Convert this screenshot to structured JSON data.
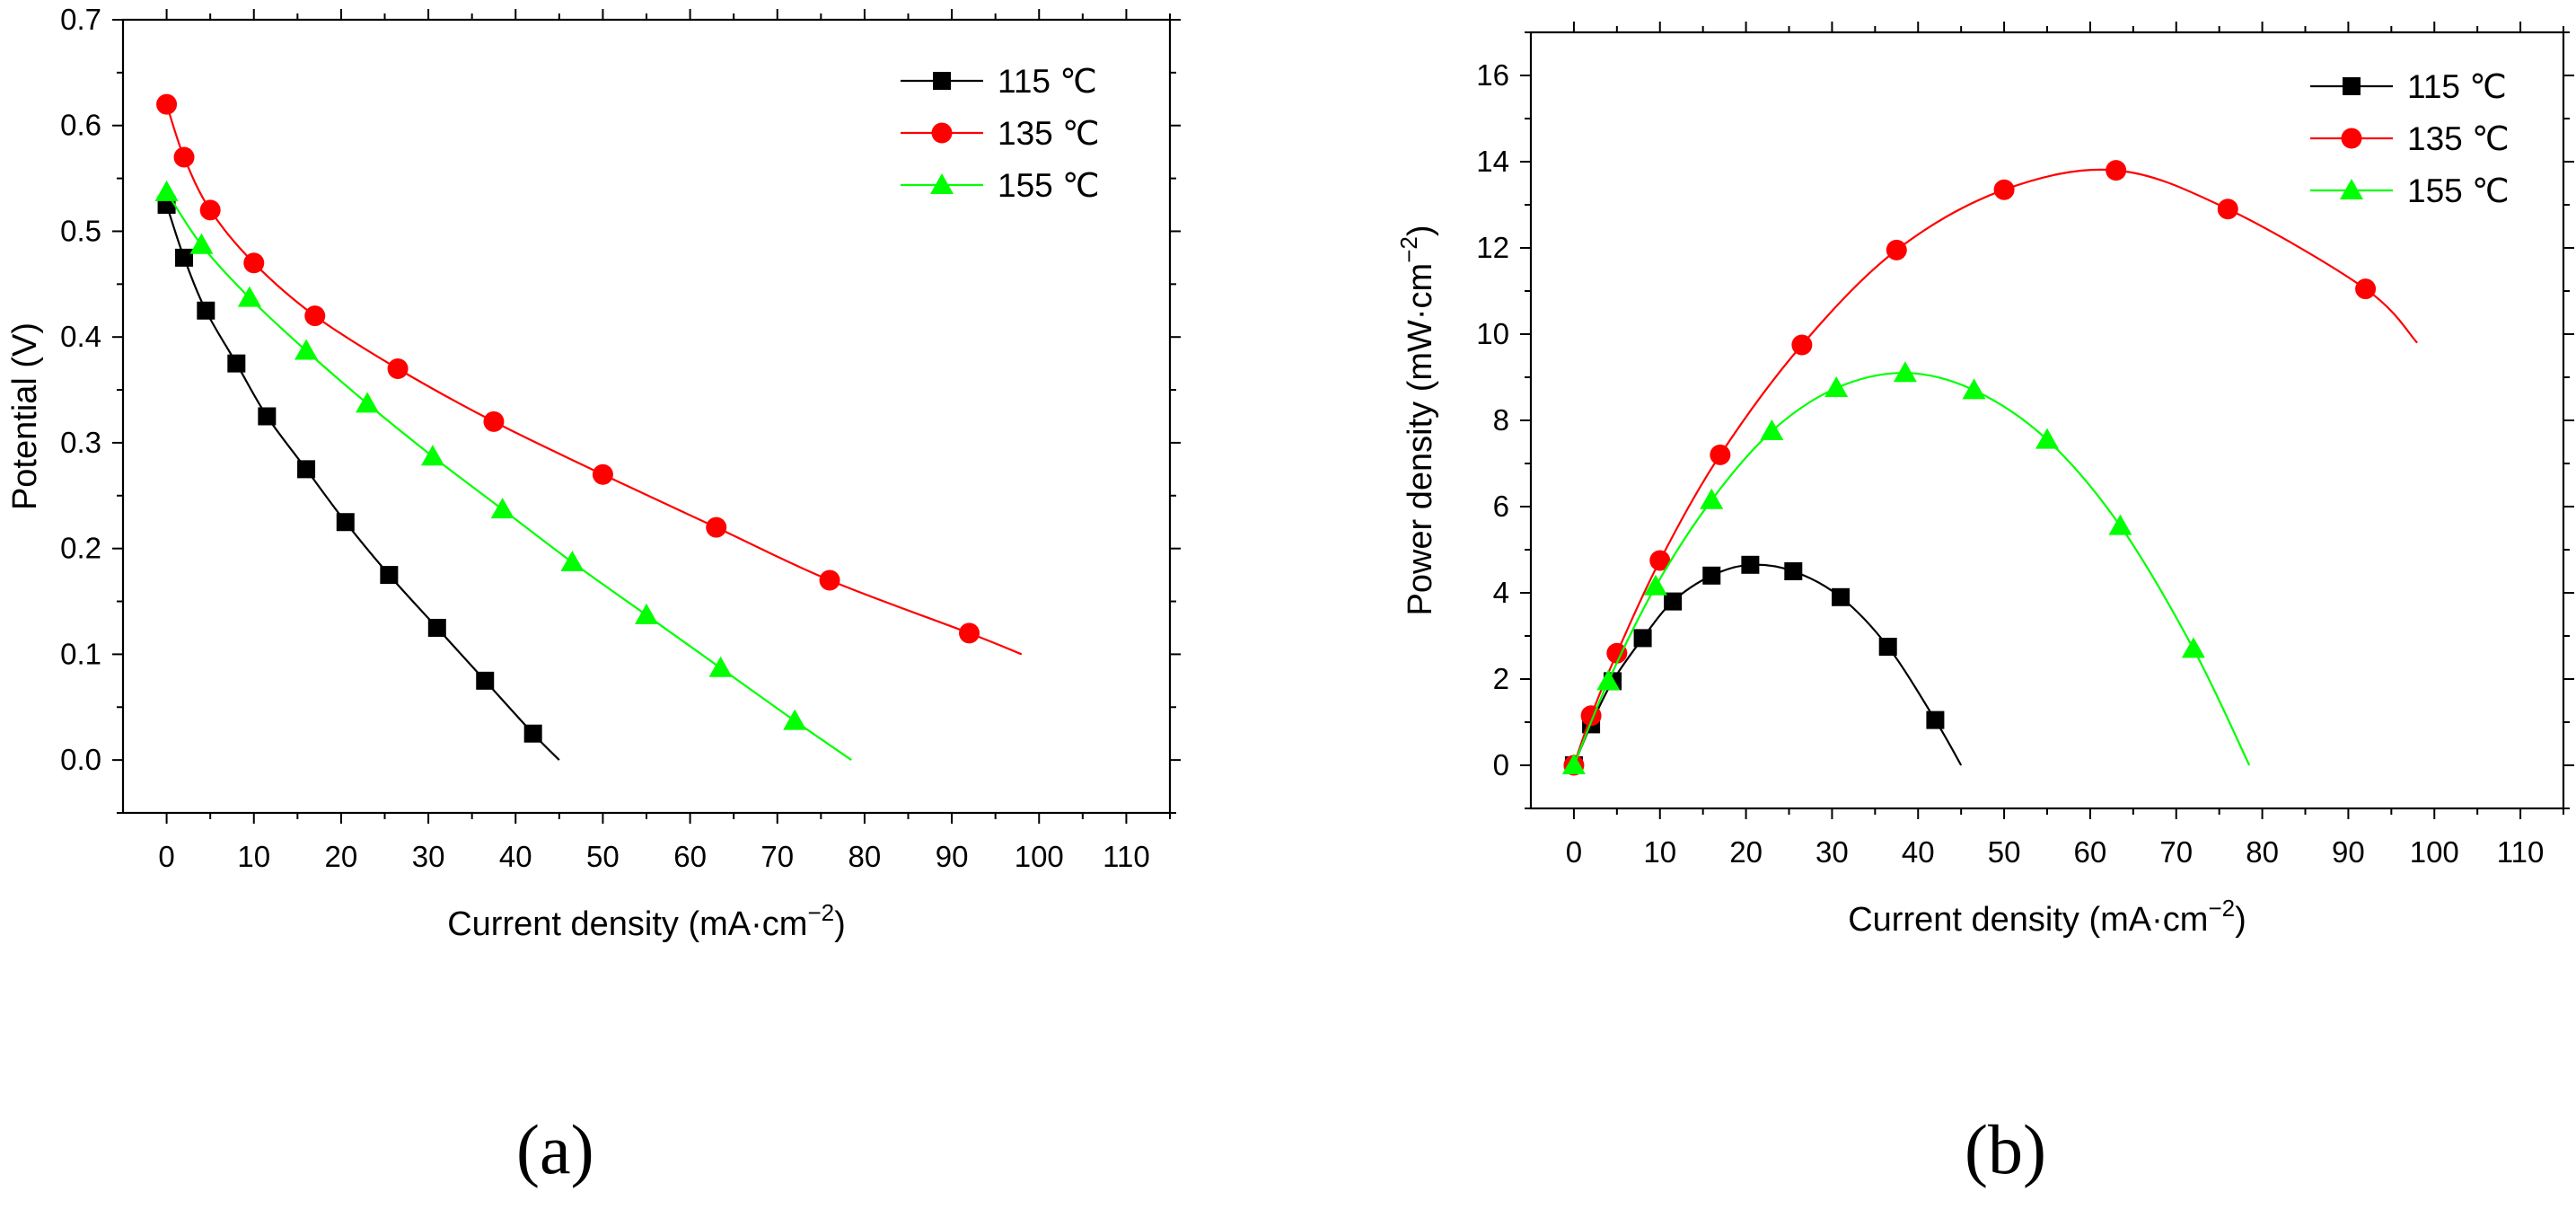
{
  "chart_data": [
    {
      "type": "line",
      "panel_label": "(a)",
      "xlabel": "Current density (mA·cm",
      "xlabel_sup": "−2",
      "xlabel_end": ")",
      "ylabel": "Potential (V)",
      "xlim": [
        -5,
        115
      ],
      "ylim": [
        -0.05,
        0.7
      ],
      "xticks": [
        "0",
        "10",
        "20",
        "30",
        "40",
        "50",
        "60",
        "70",
        "80",
        "90",
        "100",
        "110"
      ],
      "yticks": [
        "0.0",
        "0.1",
        "0.2",
        "0.3",
        "0.4",
        "0.5",
        "0.6",
        "0.7"
      ],
      "legend_position": "top-right",
      "series": [
        {
          "name": "115 ℃",
          "color": "#000000",
          "marker": "square",
          "x": [
            0,
            2,
            4.5,
            8,
            11.5,
            16,
            20.5,
            25.5,
            31,
            36.5,
            42
          ],
          "y": [
            0.525,
            0.475,
            0.425,
            0.375,
            0.325,
            0.275,
            0.225,
            0.175,
            0.125,
            0.075,
            0.025
          ],
          "line_end": [
            45,
            0.0
          ]
        },
        {
          "name": "135 ℃",
          "color": "#ff0000",
          "marker": "circle",
          "x": [
            0,
            2,
            5,
            10,
            17,
            26.5,
            37.5,
            50,
            63,
            76,
            92
          ],
          "y": [
            0.62,
            0.57,
            0.52,
            0.47,
            0.42,
            0.37,
            0.32,
            0.27,
            0.22,
            0.17,
            0.12
          ],
          "line_end": [
            98,
            0.1
          ]
        },
        {
          "name": "155 ℃",
          "color": "#00ff00",
          "marker": "triangle",
          "x": [
            0,
            4,
            9.5,
            16,
            23,
            30.5,
            38.5,
            46.5,
            55,
            63.5,
            72
          ],
          "y": [
            0.537,
            0.487,
            0.437,
            0.387,
            0.337,
            0.287,
            0.237,
            0.187,
            0.137,
            0.087,
            0.037
          ],
          "line_end": [
            78.5,
            0.0
          ]
        }
      ]
    },
    {
      "type": "line",
      "panel_label": "(b)",
      "xlabel": "Current density (mA·cm",
      "xlabel_sup": "−2",
      "xlabel_end": ")",
      "ylabel": "Power density (mW·cm",
      "ylabel_sup": "−2",
      "ylabel_end": ")",
      "xlim": [
        -5,
        115
      ],
      "ylim": [
        -1,
        17
      ],
      "xticks": [
        "0",
        "10",
        "20",
        "30",
        "40",
        "50",
        "60",
        "70",
        "80",
        "90",
        "100",
        "110"
      ],
      "yticks": [
        "0",
        "2",
        "4",
        "6",
        "8",
        "10",
        "12",
        "14",
        "16"
      ],
      "legend_position": "top-right",
      "series": [
        {
          "name": "115 ℃",
          "color": "#000000",
          "marker": "square",
          "x": [
            0,
            2,
            4.5,
            8,
            11.5,
            16,
            20.5,
            25.5,
            31,
            36.5,
            42
          ],
          "y": [
            0,
            0.95,
            1.95,
            2.95,
            3.8,
            4.4,
            4.65,
            4.5,
            3.9,
            2.75,
            1.05
          ],
          "line_end": [
            45,
            0
          ]
        },
        {
          "name": "135 ℃",
          "color": "#ff0000",
          "marker": "circle",
          "x": [
            0,
            2,
            5,
            10,
            17,
            26.5,
            37.5,
            50,
            63,
            76,
            92
          ],
          "y": [
            0,
            1.15,
            2.6,
            4.75,
            7.2,
            9.75,
            11.95,
            13.35,
            13.8,
            12.9,
            11.05
          ],
          "line_end": [
            98,
            9.8
          ]
        },
        {
          "name": "155 ℃",
          "color": "#00ff00",
          "marker": "triangle",
          "x": [
            0,
            4,
            9.5,
            16,
            23,
            30.5,
            38.5,
            46.5,
            55,
            63.5,
            72
          ],
          "y": [
            0,
            1.95,
            4.15,
            6.15,
            7.75,
            8.75,
            9.1,
            8.7,
            7.55,
            5.55,
            2.7
          ],
          "line_end": [
            78.5,
            0
          ]
        }
      ]
    }
  ]
}
